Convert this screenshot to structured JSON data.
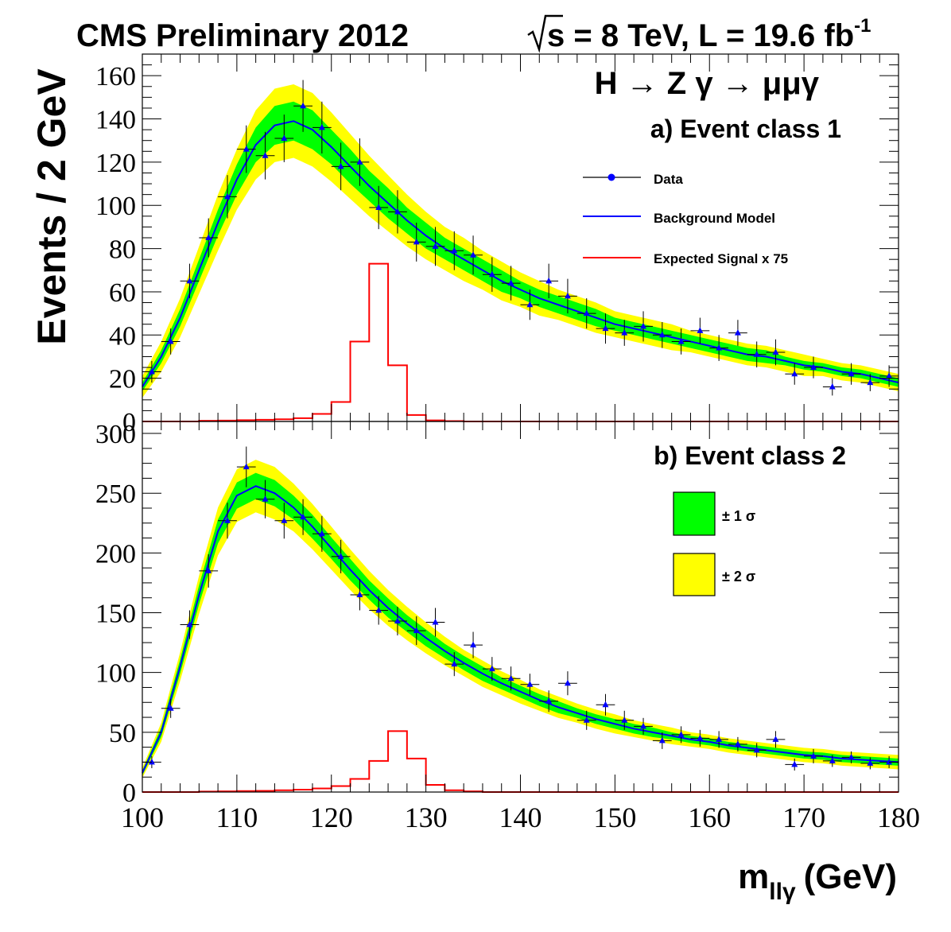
{
  "header": {
    "left": "CMS Preliminary 2012",
    "energy": "s = 8 TeV, L = 19.6 fb",
    "lumi_exp": "-1"
  },
  "colors": {
    "data": "#0000ff",
    "background": "#0000ff",
    "signal": "#ff0000",
    "band1": "#00ff00",
    "band2": "#ffff00"
  },
  "chart_data": [
    {
      "type": "line",
      "panel": "a",
      "title": "H → Z γ → μμγ",
      "class_label": "a) Event class 1",
      "ylabel": "Events / 2 GeV",
      "xlim": [
        100,
        180
      ],
      "ylim": [
        0,
        170
      ],
      "yticks": [
        0,
        20,
        40,
        60,
        80,
        100,
        120,
        140,
        160
      ],
      "legend": {
        "placement": "top-right",
        "entries": [
          "Data",
          "Background Model",
          "Expected Signal x 75"
        ]
      },
      "x": [
        101,
        103,
        105,
        107,
        109,
        111,
        113,
        115,
        117,
        119,
        121,
        123,
        125,
        127,
        129,
        131,
        133,
        135,
        137,
        139,
        141,
        143,
        145,
        147,
        149,
        151,
        153,
        155,
        157,
        159,
        161,
        163,
        165,
        167,
        169,
        171,
        173,
        175,
        177,
        179
      ],
      "data": [
        23,
        37,
        65,
        85,
        104,
        126,
        123,
        131,
        146,
        136,
        118,
        120,
        99,
        97,
        83,
        81,
        79,
        77,
        68,
        64,
        54,
        65,
        58,
        50,
        43,
        41,
        44,
        40,
        37,
        42,
        34,
        41,
        31,
        32,
        22,
        25,
        16,
        22,
        18,
        21
      ],
      "data_err": [
        5,
        6,
        8,
        9,
        10,
        11,
        11,
        11,
        12,
        12,
        11,
        11,
        10,
        10,
        9,
        9,
        9,
        9,
        8,
        8,
        7,
        8,
        8,
        7,
        7,
        6,
        7,
        6,
        6,
        6,
        6,
        6,
        6,
        6,
        5,
        5,
        4,
        5,
        4,
        5
      ],
      "background_model": {
        "x": [
          100,
          102,
          104,
          106,
          108,
          110,
          112,
          114,
          116,
          118,
          120,
          122,
          124,
          126,
          128,
          130,
          132,
          134,
          136,
          138,
          140,
          142,
          144,
          146,
          148,
          150,
          152,
          154,
          156,
          158,
          160,
          162,
          164,
          166,
          168,
          170,
          172,
          174,
          176,
          178,
          180
        ],
        "y": [
          16,
          30,
          48,
          70,
          92,
          112,
          128,
          137,
          139,
          135,
          127,
          118,
          109,
          101,
          93,
          86,
          80,
          75,
          70,
          65,
          61,
          57,
          54,
          51,
          48,
          45,
          43,
          41,
          39,
          37,
          35,
          33,
          31,
          30,
          28,
          26,
          25,
          23,
          22,
          20,
          18
        ],
        "sigma1": [
          2,
          3,
          4,
          5,
          6,
          7,
          8,
          9,
          9,
          9,
          8,
          8,
          7,
          7,
          6,
          6,
          5,
          5,
          5,
          5,
          4,
          4,
          4,
          4,
          4,
          3,
          3,
          3,
          3,
          3,
          3,
          3,
          3,
          3,
          2,
          2,
          2,
          2,
          2,
          2,
          2
        ],
        "sigma2": [
          5,
          7,
          9,
          11,
          13,
          14,
          16,
          17,
          17,
          17,
          16,
          15,
          14,
          13,
          12,
          11,
          10,
          10,
          9,
          9,
          8,
          8,
          7,
          7,
          7,
          6,
          6,
          6,
          6,
          5,
          5,
          5,
          5,
          5,
          5,
          5,
          4,
          4,
          4,
          4,
          4
        ]
      },
      "signal": {
        "edges": [
          100,
          102,
          104,
          106,
          108,
          110,
          112,
          114,
          116,
          118,
          120,
          122,
          124,
          126,
          128,
          130,
          132,
          134,
          136,
          138,
          140,
          142,
          144,
          146,
          148,
          150,
          152,
          154,
          156,
          158,
          160,
          162,
          164,
          166,
          168,
          170,
          172,
          174,
          176,
          178,
          180
        ],
        "values": [
          0,
          0,
          0,
          0.3,
          0.4,
          0.6,
          0.8,
          1,
          1.5,
          3.5,
          9,
          37,
          73,
          26,
          3,
          0.5,
          0.2,
          0,
          0,
          0,
          0,
          0,
          0,
          0,
          0,
          0,
          0,
          0,
          0,
          0,
          0,
          0,
          0,
          0,
          0,
          0,
          0,
          0,
          0,
          0
        ]
      }
    },
    {
      "type": "line",
      "panel": "b",
      "class_label": "b) Event class 2",
      "xlabel": "m",
      "xlabel_sub": "llγ",
      "xlabel_unit": "(GeV)",
      "xlim": [
        100,
        180
      ],
      "ylim": [
        0,
        310
      ],
      "yticks": [
        0,
        50,
        100,
        150,
        200,
        250,
        300
      ],
      "xticks": [
        100,
        110,
        120,
        130,
        140,
        150,
        160,
        170,
        180
      ],
      "legend": {
        "placement": "top-right",
        "entries": [
          "± 1 σ",
          "± 2 σ"
        ]
      },
      "x": [
        101,
        103,
        105,
        107,
        109,
        111,
        113,
        115,
        117,
        119,
        121,
        123,
        125,
        127,
        129,
        131,
        133,
        135,
        137,
        139,
        141,
        143,
        145,
        147,
        149,
        151,
        153,
        155,
        157,
        159,
        161,
        163,
        165,
        167,
        169,
        171,
        173,
        175,
        177,
        179
      ],
      "data": [
        25,
        70,
        140,
        185,
        227,
        272,
        245,
        227,
        230,
        216,
        197,
        165,
        152,
        143,
        135,
        142,
        107,
        123,
        103,
        95,
        90,
        76,
        91,
        60,
        73,
        60,
        55,
        43,
        48,
        45,
        44,
        40,
        35,
        44,
        23,
        30,
        26,
        29,
        24,
        25
      ],
      "data_err": [
        5,
        8,
        12,
        14,
        15,
        17,
        16,
        15,
        15,
        15,
        14,
        13,
        12,
        12,
        12,
        12,
        10,
        11,
        10,
        10,
        9,
        9,
        10,
        8,
        9,
        8,
        7,
        7,
        7,
        7,
        7,
        6,
        6,
        7,
        5,
        6,
        5,
        5,
        5,
        5
      ],
      "background_model": {
        "x": [
          100,
          102,
          104,
          106,
          108,
          110,
          112,
          114,
          116,
          118,
          120,
          122,
          124,
          126,
          128,
          130,
          132,
          134,
          136,
          138,
          140,
          142,
          144,
          146,
          148,
          150,
          152,
          154,
          156,
          158,
          160,
          162,
          164,
          166,
          168,
          170,
          172,
          174,
          176,
          178,
          180
        ],
        "y": [
          16,
          50,
          105,
          165,
          218,
          248,
          256,
          250,
          238,
          222,
          204,
          186,
          169,
          154,
          141,
          129,
          118,
          108,
          99,
          91,
          84,
          77,
          71,
          66,
          61,
          57,
          53,
          50,
          47,
          44,
          42,
          39,
          37,
          35,
          33,
          31,
          30,
          28,
          27,
          26,
          25
        ],
        "sigma1": [
          2,
          4,
          6,
          8,
          10,
          11,
          11,
          11,
          10,
          10,
          9,
          9,
          8,
          8,
          7,
          7,
          6,
          6,
          6,
          5,
          5,
          5,
          5,
          4,
          4,
          4,
          4,
          4,
          3,
          3,
          3,
          3,
          3,
          3,
          3,
          3,
          3,
          3,
          3,
          3,
          3
        ],
        "sigma2": [
          4,
          8,
          12,
          16,
          20,
          22,
          22,
          22,
          20,
          19,
          18,
          17,
          16,
          15,
          14,
          13,
          12,
          11,
          11,
          10,
          10,
          9,
          9,
          8,
          8,
          8,
          7,
          7,
          7,
          6,
          6,
          6,
          6,
          6,
          6,
          6,
          6,
          6,
          6,
          6,
          6
        ]
      },
      "signal": {
        "edges": [
          100,
          102,
          104,
          106,
          108,
          110,
          112,
          114,
          116,
          118,
          120,
          122,
          124,
          126,
          128,
          130,
          132,
          134,
          136,
          138,
          140,
          142,
          144,
          146,
          148,
          150,
          152,
          154,
          156,
          158,
          160,
          162,
          164,
          166,
          168,
          170,
          172,
          174,
          176,
          178,
          180
        ],
        "values": [
          0,
          0,
          0,
          0.4,
          0.6,
          0.8,
          1,
          1.5,
          2,
          3,
          5,
          11,
          26,
          51,
          28,
          6,
          1.5,
          0.6,
          0,
          0,
          0,
          0,
          0,
          0,
          0,
          0,
          0,
          0,
          0,
          0,
          0,
          0,
          0,
          0,
          0,
          0,
          0,
          0,
          0,
          0
        ]
      }
    }
  ]
}
